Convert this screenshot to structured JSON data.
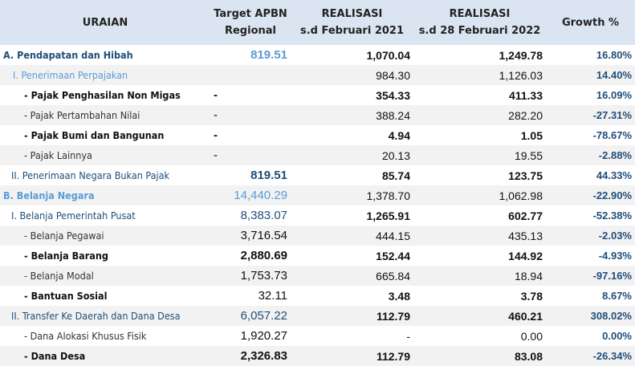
{
  "table": {
    "header": [
      [
        "URAIAN"
      ],
      [
        "Target APBN",
        "Regional"
      ],
      [
        "REALISASI",
        "s.d  Februari 2021"
      ],
      [
        "REALISASI",
        "s.d 28 Februari 2022"
      ],
      [
        "Growth %"
      ]
    ],
    "rows": [
      [
        "A. Pendapatan dan Hibah",
        "819.51",
        "1,070.04",
        "1,249.78",
        "16.80%"
      ],
      [
        "I. Penerimaan Perpajakan",
        "",
        "984.30",
        "1,126.03",
        "14.40%"
      ],
      [
        "- Pajak Penghasilan Non Migas",
        "-",
        "354.33",
        "411.33",
        "16.09%"
      ],
      [
        "- Pajak Pertambahan Nilai",
        "-",
        "388.24",
        "282.20",
        "-27.31%"
      ],
      [
        "- Pajak Bumi dan Bangunan",
        "-",
        "4.94",
        "1.05",
        "-78.67%"
      ],
      [
        "- Pajak Lainnya",
        "-",
        "20.13",
        "19.55",
        "-2.88%"
      ],
      [
        "II. Penerimaan Negara Bukan Pajak",
        "819.51",
        "85.74",
        "123.75",
        "44.33%"
      ],
      [
        "B. Belanja Negara",
        "14,440.29",
        "1,378.70",
        "1,062.98",
        "-22.90%"
      ],
      [
        "I. Belanja Pemerintah Pusat",
        "8,383.07",
        "1,265.91",
        "602.77",
        "-52.38%"
      ],
      [
        "- Belanja Pegawai",
        "3,716.54",
        "444.15",
        "435.13",
        "-2.03%"
      ],
      [
        "- Belanja Barang",
        "2,880.69",
        "152.44",
        "144.92",
        "-4.93%"
      ],
      [
        "- Belanja Modal",
        "1,753.73",
        "665.84",
        "18.94",
        "-97.16%"
      ],
      [
        "- Bantuan Sosial",
        "32.11",
        "3.48",
        "3.78",
        "8.67%"
      ],
      [
        "II. Transfer Ke Daerah dan Dana Desa",
        "6,057.22",
        "112.79",
        "460.21",
        "308.02%"
      ],
      [
        "- Dana Alokasi Khusus Fisik",
        "1,920.27",
        "-",
        "0.00",
        "0.00%"
      ],
      [
        "- Dana Desa",
        "2,326.83",
        "112.79",
        "83.08",
        "-26.34%"
      ]
    ]
  }
}
